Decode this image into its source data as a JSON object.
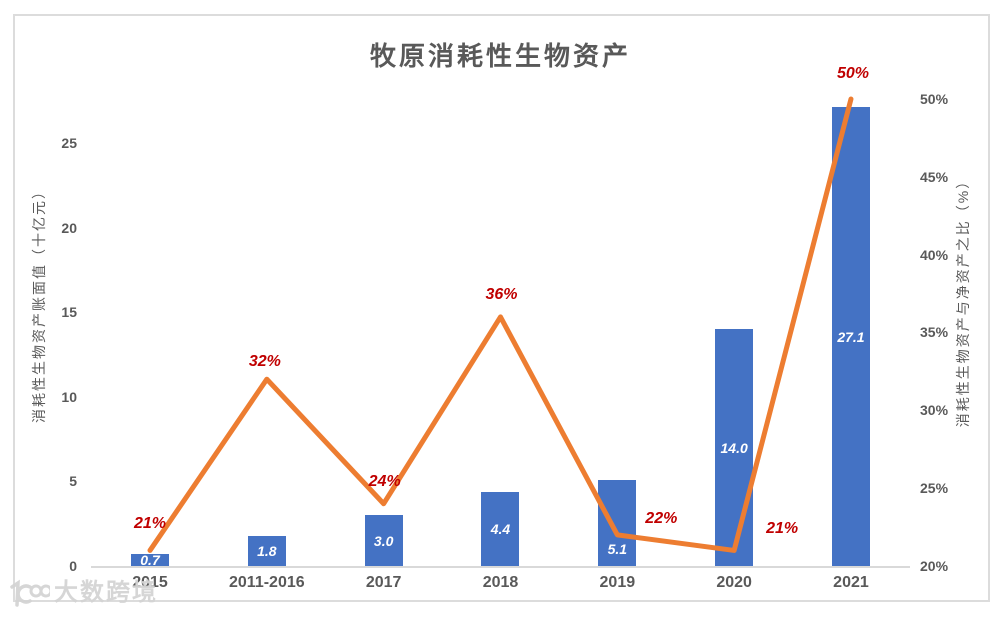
{
  "watermark": {
    "logo": "dashukuajing-logo",
    "text": "大数跨境"
  },
  "chart_data": {
    "type": "combo-bar-line",
    "title": "牧原消耗性生物资产",
    "categories": [
      "2015",
      "2011-2016",
      "2017",
      "2018",
      "2019",
      "2020",
      "2021"
    ],
    "series": [
      {
        "name": "消耗性生物资产账面值",
        "type": "bar",
        "axis": "left",
        "values": [
          0.7,
          1.8,
          3.0,
          4.4,
          5.1,
          14.0,
          27.1
        ],
        "labels": [
          "0.7",
          "1.8",
          "3.0",
          "4.4",
          "5.1",
          "14.0",
          "27.1"
        ],
        "color": "#4472c4",
        "label_color": "#ffffff"
      },
      {
        "name": "消耗性生物资产与净资产之比",
        "type": "line",
        "axis": "right",
        "values": [
          21,
          32,
          24,
          36,
          22,
          21,
          50
        ],
        "labels": [
          "21%",
          "32%",
          "24%",
          "36%",
          "22%",
          "21%",
          "50%"
        ],
        "color": "#ed7d31",
        "label_color": "#c00000"
      }
    ],
    "left_axis": {
      "title": "消耗性生物资产账面值（十亿元）",
      "ticks": [
        "0",
        "5",
        "10",
        "15",
        "20",
        "25"
      ],
      "range": [
        0,
        25
      ]
    },
    "right_axis": {
      "title": "消耗性生物资产与净资产之比（%）",
      "ticks": [
        "20%",
        "25%",
        "30%",
        "35%",
        "40%",
        "45%",
        "50%"
      ],
      "range": [
        20,
        50
      ]
    },
    "x_axis": {
      "ticks": [
        "2015",
        "2011-2016",
        "2017",
        "2018",
        "2019",
        "2020",
        "2021"
      ]
    },
    "grid": false,
    "legend": "none"
  }
}
